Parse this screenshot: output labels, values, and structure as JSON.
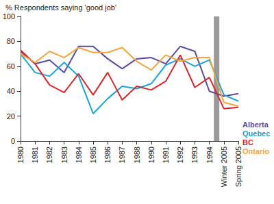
{
  "chart_data": {
    "type": "line",
    "y_label": "% Respondents saying 'good job'",
    "categories": [
      "1980",
      "1981",
      "1982",
      "1983",
      "1984",
      "1985",
      "1986",
      "1987",
      "1988",
      "1990",
      "1991",
      "1992",
      "1993",
      "1994",
      "Winter 2005",
      "Spring 2005"
    ],
    "series": [
      {
        "name": "Alberta",
        "color": "#5b4a9e",
        "values": [
          72,
          62,
          65,
          55,
          76,
          76,
          66,
          58,
          66,
          67,
          62,
          76,
          72,
          40,
          36,
          38
        ]
      },
      {
        "name": "Quebec",
        "color": "#1aa3d6",
        "values": [
          70,
          55,
          52,
          63,
          52,
          22,
          34,
          44,
          42,
          46,
          61,
          66,
          60,
          65,
          37,
          32
        ]
      },
      {
        "name": "BC",
        "color": "#d9262b",
        "values": [
          73,
          62,
          45,
          39,
          54,
          37,
          55,
          33,
          44,
          41,
          48,
          69,
          43,
          51,
          26,
          27
        ]
      },
      {
        "name": "Ontario",
        "color": "#f3a53a",
        "values": [
          70,
          63,
          72,
          67,
          75,
          71,
          71,
          75,
          64,
          57,
          69,
          64,
          67,
          67,
          31,
          28
        ]
      }
    ],
    "ylim": [
      0,
      100
    ],
    "yticks": [
      0,
      20,
      40,
      60,
      80,
      100
    ],
    "grid": false
  }
}
